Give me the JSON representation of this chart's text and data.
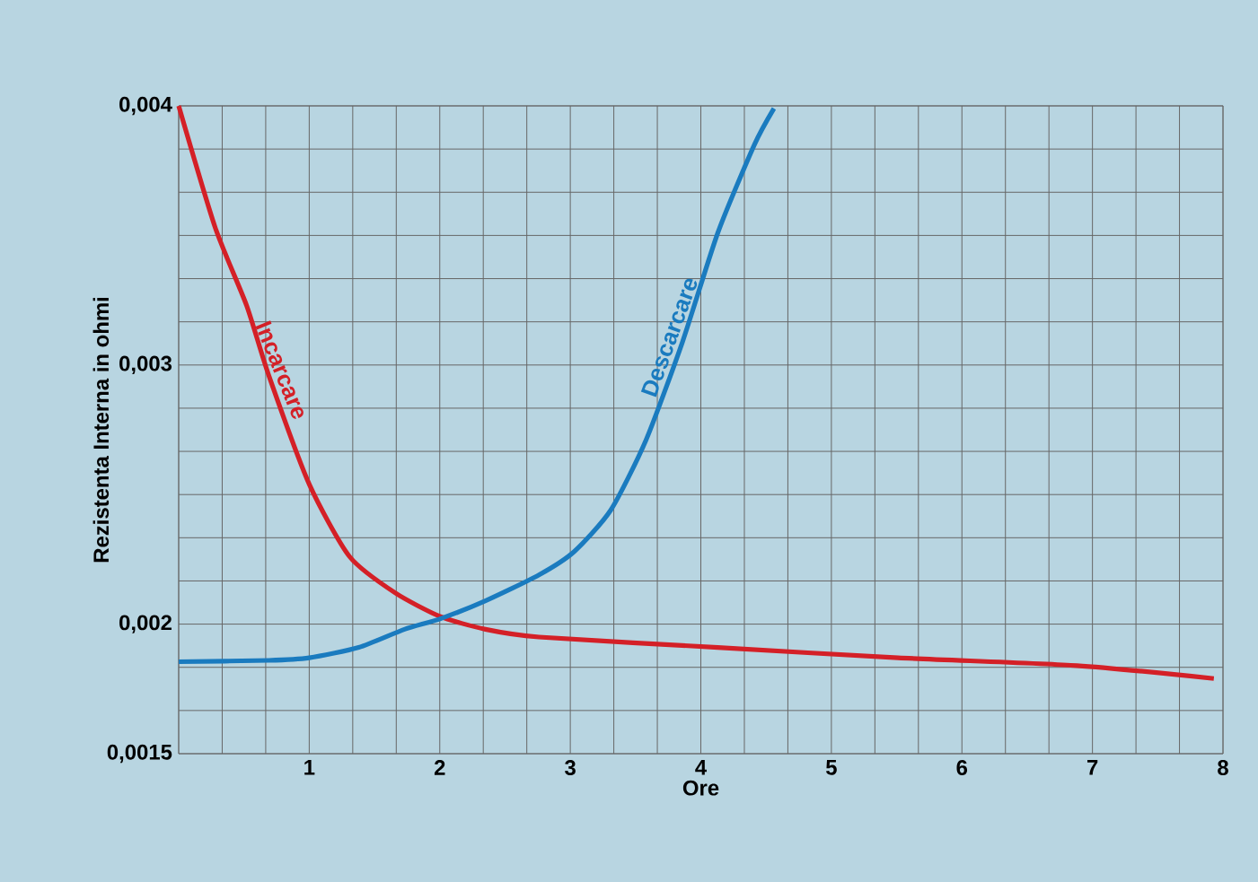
{
  "chart_data": {
    "type": "line",
    "xlabel": "Ore",
    "ylabel": "Rezistenta Interna in ohmi",
    "xlim": [
      0,
      8
    ],
    "ylim": [
      0.0015,
      0.004
    ],
    "xticks": [
      {
        "value": 0,
        "label": null
      },
      1,
      2,
      3,
      4,
      5,
      6,
      7,
      8
    ],
    "yticks": [
      {
        "value": 0.0015,
        "label": "0,0015"
      },
      {
        "value": 0.002,
        "label": "0,002"
      },
      {
        "value": 0.0025,
        "label": null
      },
      {
        "value": 0.003,
        "label": "0,003"
      },
      {
        "value": 0.0035,
        "label": null
      },
      {
        "value": 0.004,
        "label": "0,004"
      }
    ],
    "grid": true,
    "legend": false,
    "marker": "none",
    "line_style": "solid",
    "series": [
      {
        "name": "Incarcare",
        "color": "#d42027",
        "x": [
          0,
          0.28,
          0.52,
          0.69,
          1.0,
          1.31,
          1.66,
          2.0,
          2.35,
          2.76,
          4.13,
          5.51,
          6.88,
          7.93
        ],
        "values": [
          0.004,
          0.00353,
          0.00323,
          0.00296,
          0.00254,
          0.00226,
          0.00212,
          0.00203,
          0.00198,
          0.00195,
          0.00191,
          0.00187,
          0.00184,
          0.00179
        ]
      },
      {
        "name": "Descarcare",
        "color": "#1a7bbf",
        "x": [
          0,
          0.69,
          1.0,
          1.38,
          1.73,
          2.0,
          2.35,
          2.76,
          3.03,
          3.31,
          3.58,
          3.86,
          4.13,
          4.41,
          4.56
        ],
        "values": [
          0.001855,
          0.00186,
          0.00187,
          0.00191,
          0.00198,
          0.00202,
          0.00209,
          0.00219,
          0.00228,
          0.00244,
          0.00271,
          0.00309,
          0.00351,
          0.00385,
          0.00399
        ]
      }
    ]
  }
}
